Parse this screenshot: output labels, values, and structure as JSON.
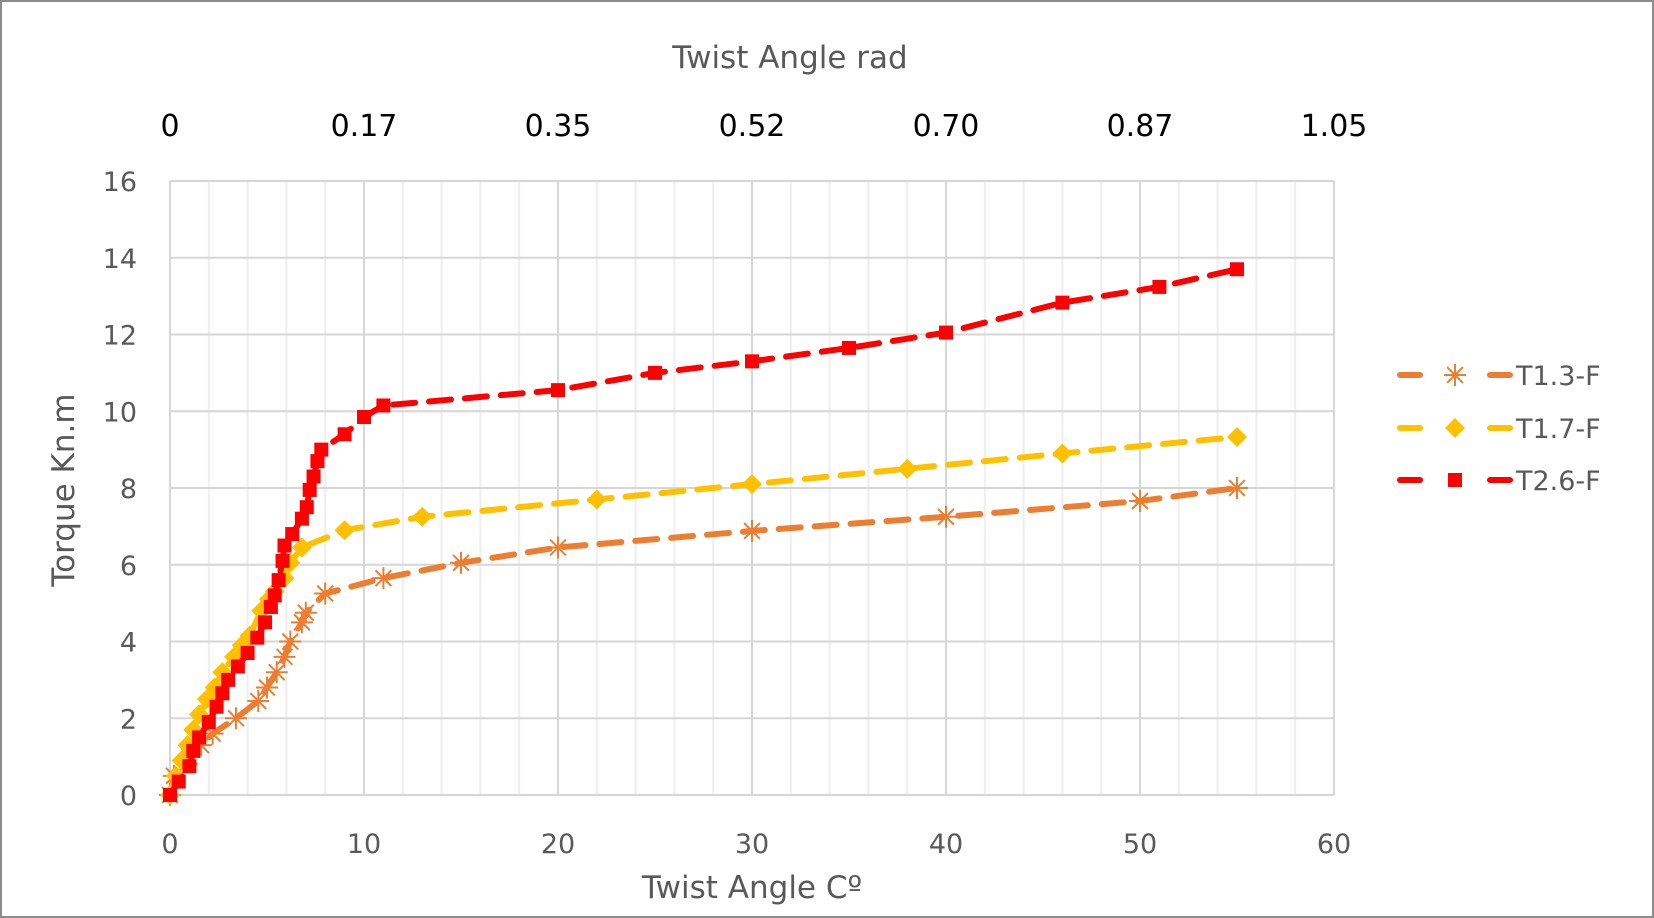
{
  "chart_data": {
    "type": "line",
    "title": "",
    "xlabel": "Twist Angle Cº",
    "ylabel": "Torque Kn.m",
    "x2label": "Twist Angle rad",
    "xlim": [
      0,
      60
    ],
    "ylim": [
      0,
      16
    ],
    "x_ticks": [
      "0",
      "10",
      "20",
      "30",
      "40",
      "50",
      "60"
    ],
    "y_ticks": [
      "0",
      "2",
      "4",
      "6",
      "8",
      "10",
      "12",
      "14",
      "16"
    ],
    "x2_ticks": [
      "0",
      "0.17",
      "0.35",
      "0.52",
      "0.70",
      "0.87",
      "1.05"
    ],
    "grid": true,
    "legend_position": "right",
    "series": [
      {
        "name": "T1.3-F",
        "color": "#ED7D31",
        "marker": "asterisk",
        "line": "dashed",
        "x": [
          0,
          0.2,
          1,
          1.6,
          2.2,
          3.4,
          4.55,
          5.0,
          5.5,
          5.9,
          6.2,
          6.8,
          7,
          8,
          11,
          15,
          20,
          30,
          40,
          50,
          55
        ],
        "y": [
          0,
          0.5,
          1.0,
          1.3,
          1.6,
          2.0,
          2.45,
          2.8,
          3.2,
          3.6,
          4.0,
          4.5,
          4.75,
          5.25,
          5.65,
          6.05,
          6.45,
          6.88,
          7.25,
          7.66,
          8.0
        ]
      },
      {
        "name": "T1.7-F",
        "color": "#FFC000",
        "marker": "diamond",
        "line": "dashed",
        "x": [
          0,
          0.3,
          0.6,
          0.9,
          1.2,
          1.5,
          1.9,
          2.3,
          2.7,
          3.3,
          3.7,
          4.1,
          4.7,
          5.1,
          5.4,
          5.9,
          6.2,
          6.8,
          9,
          13,
          22,
          30,
          38,
          46,
          55
        ],
        "y": [
          0,
          0.5,
          0.9,
          1.3,
          1.7,
          2.1,
          2.5,
          2.8,
          3.2,
          3.6,
          3.9,
          4.15,
          4.8,
          5.1,
          5.3,
          5.65,
          6.05,
          6.45,
          6.9,
          7.25,
          7.7,
          8.1,
          8.5,
          8.9,
          9.33
        ]
      },
      {
        "name": "T2.6-F",
        "color": "#FF0000",
        "marker": "square",
        "line": "dashed",
        "x": [
          0,
          0.45,
          1,
          1.2,
          1.5,
          2,
          2.4,
          2.7,
          3,
          3.5,
          4,
          4.5,
          4.9,
          5.2,
          5.4,
          5.6,
          5.8,
          5.9,
          6.3,
          6.8,
          7.05,
          7.2,
          7.4,
          7.6,
          7.8,
          9,
          10,
          11,
          20,
          25,
          30,
          35,
          40,
          46,
          51,
          55
        ],
        "y": [
          0,
          0.35,
          0.75,
          1.15,
          1.5,
          1.9,
          2.3,
          2.65,
          3.0,
          3.35,
          3.7,
          4.1,
          4.5,
          4.9,
          5.2,
          5.6,
          6.1,
          6.5,
          6.8,
          7.2,
          7.5,
          7.95,
          8.3,
          8.7,
          9.0,
          9.4,
          9.85,
          10.15,
          10.55,
          11.0,
          11.3,
          11.65,
          12.05,
          12.83,
          13.24,
          13.7
        ]
      }
    ]
  }
}
